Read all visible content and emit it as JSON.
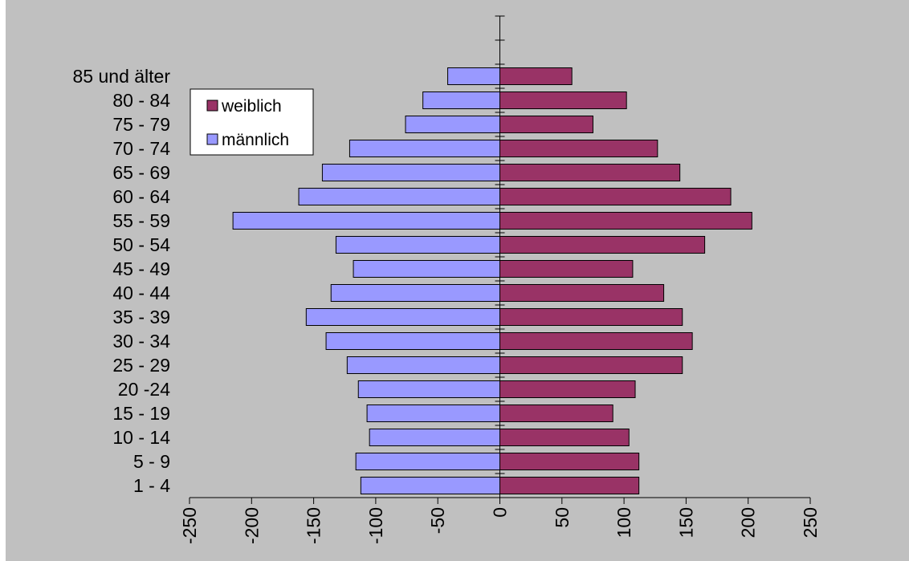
{
  "chart_data": {
    "type": "bar",
    "orientation": "horizontal",
    "layout": "population-pyramid",
    "categories": [
      "1 - 4",
      "5 - 9",
      "10 - 14",
      "15 - 19",
      "20 -24",
      "25 - 29",
      "30 - 34",
      "35 - 39",
      "40 - 44",
      "45 - 49",
      "50 - 54",
      "55 - 59",
      "60 - 64",
      "65 - 69",
      "70 - 74",
      "75 - 79",
      "80 - 84",
      "85 und älter"
    ],
    "series": [
      {
        "name": "weiblich",
        "color": "#993366",
        "values": [
          112,
          112,
          104,
          91,
          109,
          147,
          155,
          147,
          132,
          107,
          165,
          203,
          186,
          145,
          127,
          75,
          102,
          58
        ]
      },
      {
        "name": "männlich",
        "color": "#9999ff",
        "values": [
          -112,
          -116,
          -105,
          -107,
          -114,
          -123,
          -140,
          -156,
          -136,
          -118,
          -132,
          -215,
          -162,
          -143,
          -121,
          -76,
          -62,
          -42
        ]
      }
    ],
    "xlim": [
      -250,
      250
    ],
    "xticks": [
      -250,
      -200,
      -150,
      -100,
      -50,
      0,
      50,
      100,
      150,
      200,
      250
    ],
    "title": "",
    "xlabel": "",
    "ylabel": "",
    "grid": false,
    "legend_position": "top-left",
    "background": "#c0c0c0"
  }
}
